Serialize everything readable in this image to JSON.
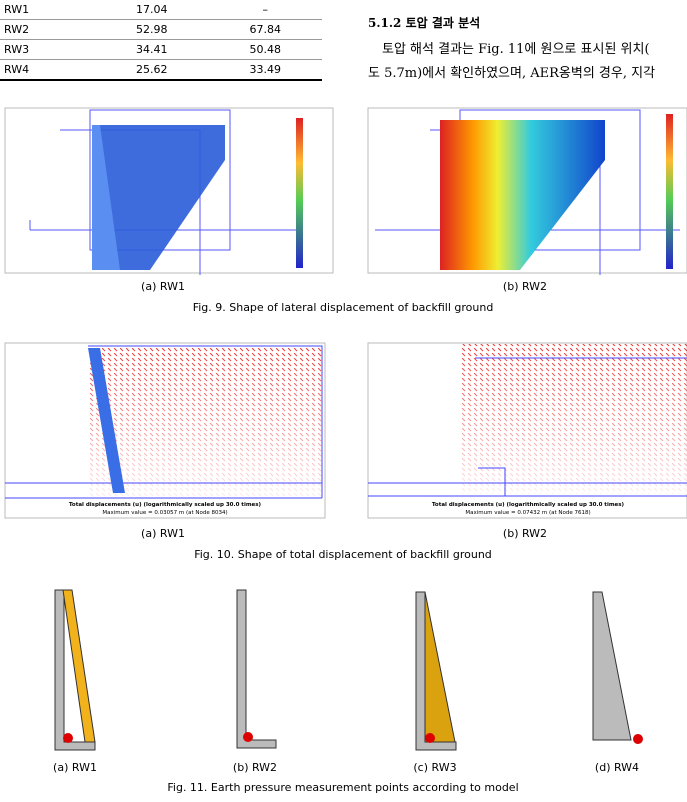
{
  "table": {
    "rows": [
      [
        "RW1",
        "17.04",
        "–"
      ],
      [
        "RW2",
        "52.98",
        "67.84"
      ],
      [
        "RW3",
        "34.41",
        "50.48"
      ],
      [
        "RW4",
        "25.62",
        "33.49"
      ]
    ]
  },
  "section": {
    "heading": "5.1.2 토압 결과 분석",
    "lines": [
      "토압 해석 결과는 Fig. 11에 원으로 표시된 위치(",
      "도 5.7m)에서 확인하였으며, AER옹벽의 경우, 지각"
    ]
  },
  "fig9": {
    "panels": [
      "(a) RW1",
      "(b) RW2"
    ],
    "caption": "Fig. 9. Shape of lateral displacement of backfill ground"
  },
  "fig10": {
    "panels": [
      {
        "label": "(a) RW1",
        "plot_title": "Total displacements (u) (logarithmically scaled up 30.0 times)",
        "max_text": "Maximum value = 0.03057 m (at Node 8034)"
      },
      {
        "label": "(b) RW2",
        "plot_title": "Total displacements (u) (logarithmically scaled up 30.0 times)",
        "max_text": "Maximum value = 0.07432 m (at Node 7618)"
      }
    ],
    "caption": "Fig. 10. Shape of total displacement of backfill ground"
  },
  "fig11": {
    "panels": [
      "(a) RW1",
      "(b) RW2",
      "(c) RW3",
      "(d) RW4"
    ],
    "caption": "Fig. 11. Earth pressure measurement points according to model"
  }
}
